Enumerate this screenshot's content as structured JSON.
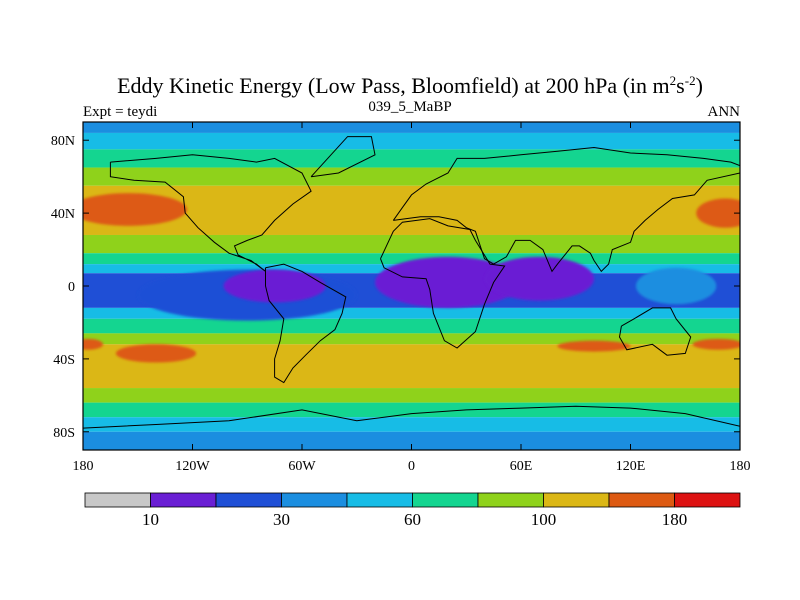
{
  "chart_data": {
    "type": "heatmap",
    "title_main": "Eddy Kinetic Energy (Low Pass, Bloomfield) at 200 hPa (in m",
    "title_unit_m_exp": "2",
    "title_unit_s": "s",
    "title_unit_s_exp": "-2",
    "title_close": ")",
    "subtitle_left": "Expt = teydi",
    "subtitle_center": "039_5_MaBP",
    "subtitle_right": "ANN",
    "xaxis": {
      "range": [
        -180,
        180
      ],
      "ticks": [
        {
          "value": -180,
          "label": "180"
        },
        {
          "value": -120,
          "label": "120W"
        },
        {
          "value": -60,
          "label": "60W"
        },
        {
          "value": 0,
          "label": "0"
        },
        {
          "value": 60,
          "label": "60E"
        },
        {
          "value": 120,
          "label": "120E"
        },
        {
          "value": 180,
          "label": "180"
        }
      ]
    },
    "yaxis": {
      "range": [
        -90,
        90
      ],
      "ticks": [
        {
          "value": 80,
          "label": "80N"
        },
        {
          "value": 40,
          "label": "40N"
        },
        {
          "value": 0,
          "label": "0"
        },
        {
          "value": -40,
          "label": "40S"
        },
        {
          "value": -80,
          "label": "80S"
        }
      ]
    },
    "colorbar": {
      "colors": [
        "#c8c8c8",
        "#6a1fd4",
        "#1f4fd6",
        "#1b8ee0",
        "#17bce6",
        "#14d590",
        "#8fd21b",
        "#dbb716",
        "#dd5a12",
        "#dd1212"
      ],
      "labels": [
        {
          "after_box": 1,
          "label": "10"
        },
        {
          "after_box": 3,
          "label": "30"
        },
        {
          "after_box": 5,
          "label": "60"
        },
        {
          "after_box": 7,
          "label": "100"
        },
        {
          "after_box": 9,
          "label": "180"
        }
      ]
    },
    "bands": [
      {
        "lat_top": 90,
        "lat_bottom": 84,
        "level": 3
      },
      {
        "lat_top": 84,
        "lat_bottom": 75,
        "level": 4
      },
      {
        "lat_top": 75,
        "lat_bottom": 65,
        "level": 5
      },
      {
        "lat_top": 65,
        "lat_bottom": 55,
        "level": 6
      },
      {
        "lat_top": 55,
        "lat_bottom": 28,
        "level": 7
      },
      {
        "lat_top": 28,
        "lat_bottom": 18,
        "level": 6
      },
      {
        "lat_top": 18,
        "lat_bottom": 12,
        "level": 5
      },
      {
        "lat_top": 12,
        "lat_bottom": 7,
        "level": 4
      },
      {
        "lat_top": 7,
        "lat_bottom": -12,
        "level": 2
      },
      {
        "lat_top": -12,
        "lat_bottom": -18,
        "level": 4
      },
      {
        "lat_top": -18,
        "lat_bottom": -26,
        "level": 5
      },
      {
        "lat_top": -26,
        "lat_bottom": -32,
        "level": 6
      },
      {
        "lat_top": -32,
        "lat_bottom": -56,
        "level": 7
      },
      {
        "lat_top": -56,
        "lat_bottom": -64,
        "level": 6
      },
      {
        "lat_top": -64,
        "lat_bottom": -72,
        "level": 5
      },
      {
        "lat_top": -72,
        "lat_bottom": -80,
        "level": 4
      },
      {
        "lat_top": -80,
        "lat_bottom": -90,
        "level": 3
      }
    ],
    "blobs": [
      {
        "lon": -155,
        "lat": 42,
        "rlon": 32,
        "rlat": 9,
        "level": 8
      },
      {
        "lon": 172,
        "lat": 40,
        "rlon": 16,
        "rlat": 8,
        "level": 8
      },
      {
        "lon": -140,
        "lat": -37,
        "rlon": 22,
        "rlat": 5,
        "level": 8
      },
      {
        "lon": -177,
        "lat": -32,
        "rlon": 8,
        "rlat": 3,
        "level": 8
      },
      {
        "lon": 100,
        "lat": -33,
        "rlon": 20,
        "rlat": 3,
        "level": 8
      },
      {
        "lon": 168,
        "lat": -32,
        "rlon": 14,
        "rlat": 3,
        "level": 8
      },
      {
        "lon": -90,
        "lat": -5,
        "rlon": 60,
        "rlat": 14,
        "level": 2
      },
      {
        "lon": 20,
        "lat": 2,
        "rlon": 40,
        "rlat": 14,
        "level": 1
      },
      {
        "lon": 70,
        "lat": 4,
        "rlon": 30,
        "rlat": 12,
        "level": 1
      },
      {
        "lon": -75,
        "lat": 0,
        "rlon": 28,
        "rlat": 9,
        "level": 1
      },
      {
        "lon": 145,
        "lat": 0,
        "rlon": 22,
        "rlat": 10,
        "level": 3
      }
    ],
    "continents": [
      [
        [
          -165,
          68
        ],
        [
          -140,
          70
        ],
        [
          -120,
          72
        ],
        [
          -100,
          70
        ],
        [
          -85,
          68
        ],
        [
          -75,
          70
        ],
        [
          -60,
          62
        ],
        [
          -55,
          52
        ],
        [
          -65,
          45
        ],
        [
          -75,
          36
        ],
        [
          -82,
          28
        ],
        [
          -90,
          25
        ],
        [
          -97,
          22
        ],
        [
          -95,
          17
        ],
        [
          -85,
          12
        ],
        [
          -80,
          8
        ],
        [
          -88,
          14
        ],
        [
          -100,
          18
        ],
        [
          -108,
          24
        ],
        [
          -117,
          32
        ],
        [
          -124,
          40
        ],
        [
          -125,
          49
        ],
        [
          -135,
          57
        ],
        [
          -152,
          58
        ],
        [
          -165,
          60
        ],
        [
          -165,
          68
        ]
      ],
      [
        [
          -80,
          10
        ],
        [
          -70,
          12
        ],
        [
          -60,
          8
        ],
        [
          -50,
          2
        ],
        [
          -36,
          -6
        ],
        [
          -38,
          -15
        ],
        [
          -42,
          -24
        ],
        [
          -50,
          -30
        ],
        [
          -58,
          -38
        ],
        [
          -65,
          -45
        ],
        [
          -70,
          -53
        ],
        [
          -75,
          -50
        ],
        [
          -75,
          -40
        ],
        [
          -72,
          -30
        ],
        [
          -70,
          -18
        ],
        [
          -78,
          -8
        ],
        [
          -80,
          0
        ],
        [
          -80,
          10
        ]
      ],
      [
        [
          -55,
          60
        ],
        [
          -35,
          82
        ],
        [
          -22,
          82
        ],
        [
          -20,
          72
        ],
        [
          -40,
          62
        ],
        [
          -55,
          60
        ]
      ],
      [
        [
          -10,
          36
        ],
        [
          -5,
          43
        ],
        [
          0,
          50
        ],
        [
          8,
          56
        ],
        [
          12,
          58
        ],
        [
          20,
          62
        ],
        [
          25,
          70
        ],
        [
          40,
          70
        ],
        [
          60,
          72
        ],
        [
          80,
          74
        ],
        [
          100,
          76
        ],
        [
          120,
          73
        ],
        [
          140,
          72
        ],
        [
          160,
          70
        ],
        [
          175,
          68
        ],
        [
          180,
          66
        ],
        [
          180,
          62
        ],
        [
          162,
          58
        ],
        [
          155,
          50
        ],
        [
          143,
          48
        ],
        [
          135,
          42
        ],
        [
          128,
          36
        ],
        [
          122,
          30
        ],
        [
          120,
          24
        ],
        [
          110,
          20
        ],
        [
          108,
          12
        ],
        [
          104,
          8
        ],
        [
          100,
          14
        ],
        [
          98,
          18
        ],
        [
          92,
          22
        ],
        [
          88,
          22
        ],
        [
          80,
          12
        ],
        [
          77,
          8
        ],
        [
          72,
          20
        ],
        [
          65,
          25
        ],
        [
          57,
          25
        ],
        [
          52,
          16
        ],
        [
          45,
          12
        ],
        [
          40,
          15
        ],
        [
          35,
          30
        ],
        [
          30,
          32
        ],
        [
          25,
          36
        ],
        [
          15,
          38
        ],
        [
          5,
          38
        ],
        [
          -10,
          36
        ]
      ],
      [
        [
          -17,
          15
        ],
        [
          -10,
          30
        ],
        [
          -5,
          35
        ],
        [
          10,
          37
        ],
        [
          20,
          33
        ],
        [
          32,
          31
        ],
        [
          35,
          25
        ],
        [
          43,
          12
        ],
        [
          51,
          11
        ],
        [
          45,
          2
        ],
        [
          40,
          -10
        ],
        [
          35,
          -25
        ],
        [
          25,
          -34
        ],
        [
          18,
          -30
        ],
        [
          12,
          -15
        ],
        [
          10,
          -2
        ],
        [
          8,
          4
        ],
        [
          -5,
          5
        ],
        [
          -15,
          10
        ],
        [
          -17,
          15
        ]
      ],
      [
        [
          115,
          -22
        ],
        [
          122,
          -18
        ],
        [
          132,
          -12
        ],
        [
          142,
          -12
        ],
        [
          145,
          -18
        ],
        [
          153,
          -28
        ],
        [
          150,
          -37
        ],
        [
          140,
          -38
        ],
        [
          132,
          -32
        ],
        [
          118,
          -35
        ],
        [
          114,
          -28
        ],
        [
          115,
          -22
        ]
      ],
      [
        [
          -180,
          -78
        ],
        [
          -140,
          -76
        ],
        [
          -100,
          -74
        ],
        [
          -60,
          -68
        ],
        [
          -30,
          -74
        ],
        [
          0,
          -70
        ],
        [
          30,
          -68
        ],
        [
          60,
          -67
        ],
        [
          90,
          -66
        ],
        [
          120,
          -67
        ],
        [
          150,
          -70
        ],
        [
          180,
          -77
        ],
        [
          180,
          -90
        ],
        [
          -180,
          -90
        ],
        [
          -180,
          -78
        ]
      ]
    ]
  }
}
